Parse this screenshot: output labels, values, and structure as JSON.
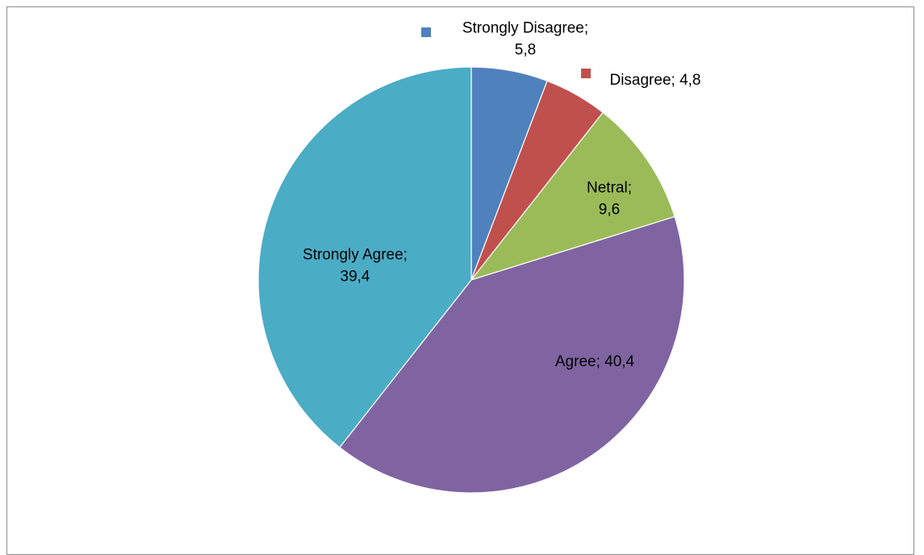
{
  "chart_data": {
    "type": "pie",
    "categories": [
      "Strongly Disagree",
      "Disagree",
      "Netral",
      "Agree",
      "Strongly Agree"
    ],
    "values": [
      5.8,
      4.8,
      9.6,
      40.4,
      39.4
    ],
    "value_labels": [
      "5,8",
      "4,8",
      "9,6",
      "40,4",
      "39,4"
    ],
    "data_labels": [
      [
        "Strongly Disagree;",
        "5,8"
      ],
      [
        "Disagree; 4,8"
      ],
      [
        "Netral;",
        "9,6"
      ],
      [
        "Agree; 40,4"
      ],
      [
        "Strongly Agree;",
        "39,4"
      ]
    ],
    "colors": [
      "#4f81bd",
      "#c0504d",
      "#9bbb59",
      "#8064a2",
      "#4bacc6"
    ],
    "label_placement": [
      "outside-with-key",
      "outside-with-key",
      "inside",
      "inside",
      "inside"
    ],
    "title": "",
    "start_angle": "12 o'clock",
    "direction": "clockwise"
  }
}
